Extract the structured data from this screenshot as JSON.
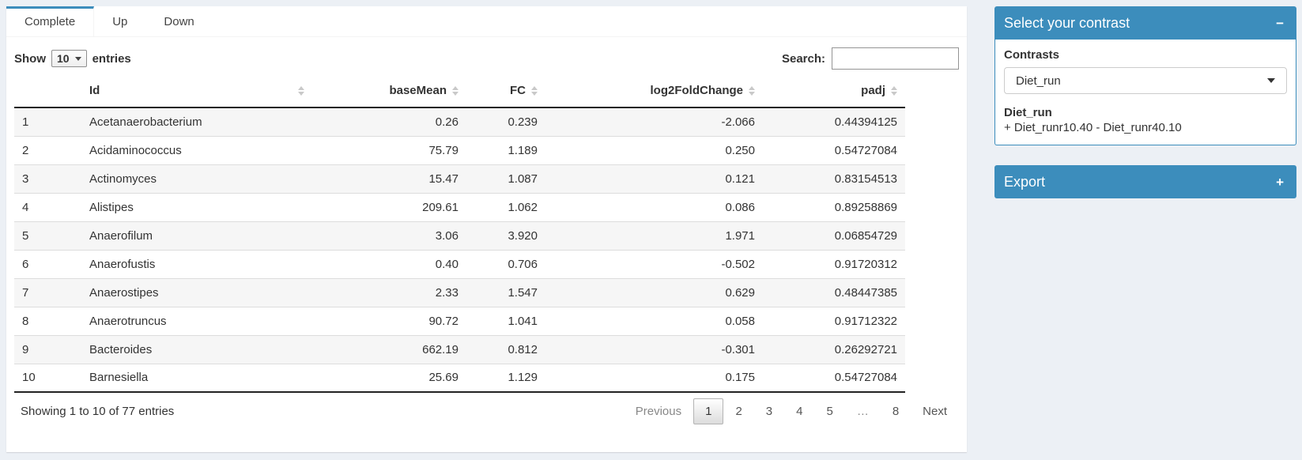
{
  "page": {
    "background": "#ecf0f5",
    "accent": "#3c8dbc"
  },
  "tabs": [
    {
      "label": "Complete",
      "active": true
    },
    {
      "label": "Up",
      "active": false
    },
    {
      "label": "Down",
      "active": false
    }
  ],
  "table_controls": {
    "show_label": "Show",
    "page_length": "10",
    "entries_label": "entries",
    "search_label": "Search:",
    "search_value": ""
  },
  "table": {
    "columns": [
      "Id",
      "baseMean",
      "FC",
      "log2FoldChange",
      "padj"
    ],
    "rows": [
      {
        "index": "1",
        "id": "Acetanaerobacterium",
        "baseMean": "0.26",
        "fc": "0.239",
        "log2fc": "-2.066",
        "padj": "0.44394125"
      },
      {
        "index": "2",
        "id": "Acidaminococcus",
        "baseMean": "75.79",
        "fc": "1.189",
        "log2fc": "0.250",
        "padj": "0.54727084"
      },
      {
        "index": "3",
        "id": "Actinomyces",
        "baseMean": "15.47",
        "fc": "1.087",
        "log2fc": "0.121",
        "padj": "0.83154513"
      },
      {
        "index": "4",
        "id": "Alistipes",
        "baseMean": "209.61",
        "fc": "1.062",
        "log2fc": "0.086",
        "padj": "0.89258869"
      },
      {
        "index": "5",
        "id": "Anaerofilum",
        "baseMean": "3.06",
        "fc": "3.920",
        "log2fc": "1.971",
        "padj": "0.06854729"
      },
      {
        "index": "6",
        "id": "Anaerofustis",
        "baseMean": "0.40",
        "fc": "0.706",
        "log2fc": "-0.502",
        "padj": "0.91720312"
      },
      {
        "index": "7",
        "id": "Anaerostipes",
        "baseMean": "2.33",
        "fc": "1.547",
        "log2fc": "0.629",
        "padj": "0.48447385"
      },
      {
        "index": "8",
        "id": "Anaerotruncus",
        "baseMean": "90.72",
        "fc": "1.041",
        "log2fc": "0.058",
        "padj": "0.91712322"
      },
      {
        "index": "9",
        "id": "Bacteroides",
        "baseMean": "662.19",
        "fc": "0.812",
        "log2fc": "-0.301",
        "padj": "0.26292721"
      },
      {
        "index": "10",
        "id": "Barnesiella",
        "baseMean": "25.69",
        "fc": "1.129",
        "log2fc": "0.175",
        "padj": "0.54727084"
      }
    ]
  },
  "table_footer": {
    "info": "Showing 1 to 10 of 77 entries",
    "pagination": {
      "previous": "Previous",
      "pages": [
        "1",
        "2",
        "3",
        "4",
        "5",
        "…",
        "8"
      ],
      "current": "1",
      "next": "Next"
    }
  },
  "contrast_panel": {
    "title": "Select your contrast",
    "collapse_icon": "−",
    "contrasts_label": "Contrasts",
    "selected_contrast": "Diet_run",
    "detail_title": "Diet_run",
    "detail_text": "+ Diet_runr10.40 - Diet_runr40.10"
  },
  "export_panel": {
    "title": "Export",
    "expand_icon": "+"
  }
}
